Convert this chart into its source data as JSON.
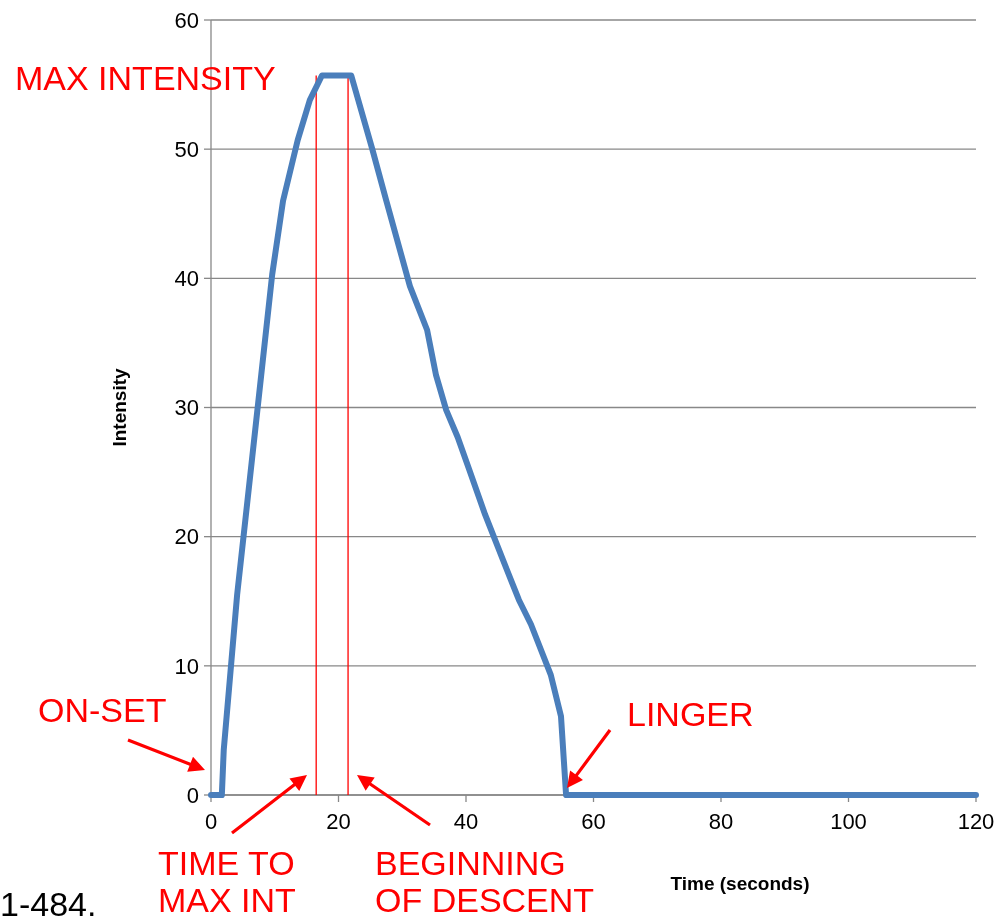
{
  "chart_data": {
    "type": "line",
    "xlabel": "Time (seconds)",
    "ylabel": "Intensity",
    "x": [
      0,
      1.7,
      2,
      4.1,
      7.1,
      9.6,
      11.3,
      13.6,
      15.5,
      17.4,
      22,
      25.3,
      27.5,
      31.2,
      33.9,
      35.3,
      36.9,
      38.7,
      40.5,
      43,
      45.8,
      48.3,
      50.2,
      53.3,
      54.9,
      55.7,
      120
    ],
    "series": [
      {
        "color": "#4a7ebb",
        "values": [
          0,
          0,
          3.5,
          15.5,
          29,
          40.3,
          46,
          50.7,
          53.8,
          55.7,
          55.7,
          50,
          46,
          39.4,
          36,
          32.5,
          29.8,
          27.7,
          25.2,
          21.7,
          18.2,
          15.1,
          13.2,
          9.3,
          6.1,
          0,
          0
        ]
      }
    ],
    "xlim": [
      0,
      120
    ],
    "xticks": [
      0,
      20,
      40,
      60,
      80,
      100,
      120
    ],
    "ylim": [
      0,
      60
    ],
    "yticks": [
      0,
      10,
      20,
      30,
      40,
      50,
      60
    ],
    "grid": "y",
    "marker": "none",
    "line_style": "solid",
    "ref_lines": [
      {
        "axis": "x",
        "value": 16.5,
        "color": "#ff0000"
      },
      {
        "axis": "x",
        "value": 21.5,
        "color": "#ff0000"
      }
    ],
    "annotations": [
      "MAX INTENSITY",
      "ON-SET",
      "TIME TO\nMAX INT",
      "BEGINNING\nOF DESCENT",
      "LINGER",
      "1-484."
    ]
  }
}
